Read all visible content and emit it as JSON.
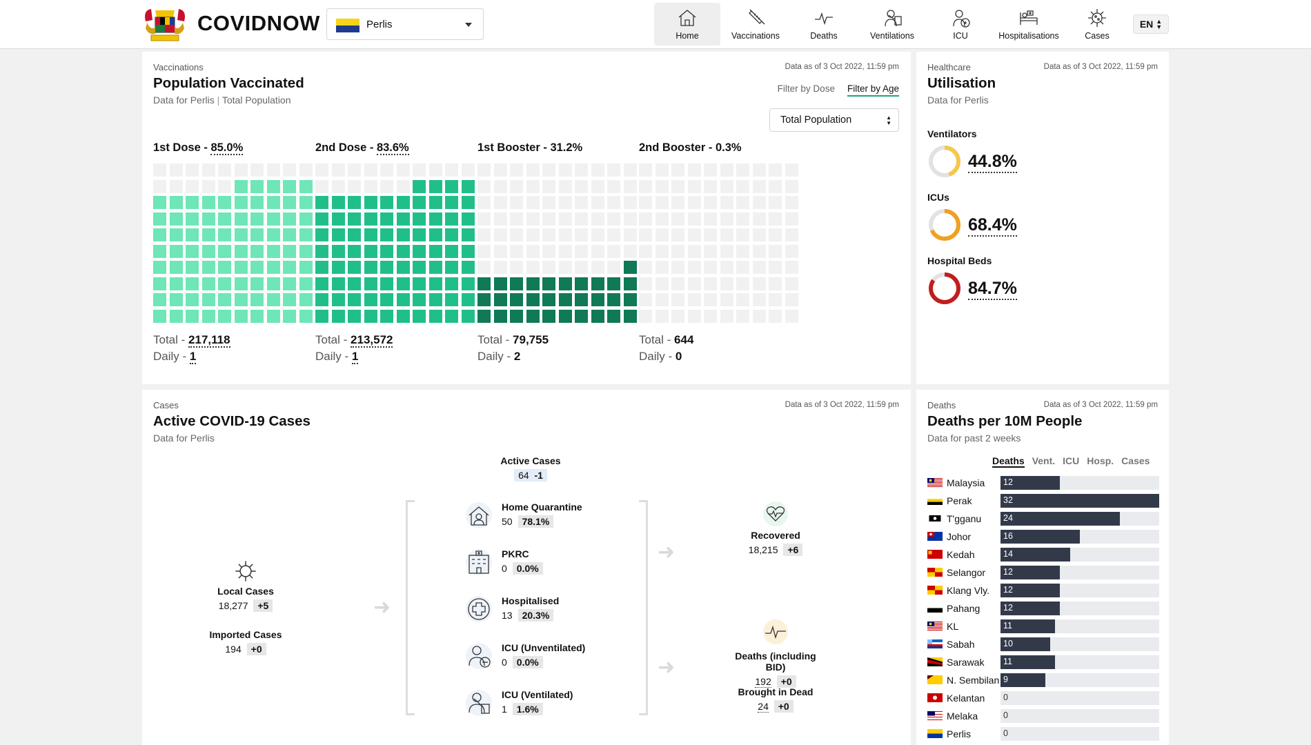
{
  "brand": "COVIDNOW",
  "state_select": {
    "value": "Perlis"
  },
  "nav": [
    {
      "label": "Home",
      "icon": "home-icon",
      "active": true
    },
    {
      "label": "Vaccinations",
      "icon": "syringe-icon"
    },
    {
      "label": "Deaths",
      "icon": "pulse-icon"
    },
    {
      "label": "Ventilations",
      "icon": "ventilator-icon"
    },
    {
      "label": "ICU",
      "icon": "icu-icon"
    },
    {
      "label": "Hospitalisations",
      "icon": "hospital-bed-icon"
    },
    {
      "label": "Cases",
      "icon": "virus-icon"
    }
  ],
  "lang": "EN",
  "vaccinations": {
    "eyebrow": "Vaccinations",
    "title": "Population Vaccinated",
    "subtitle_state": "Data for Perlis",
    "subtitle_sep": "|",
    "subtitle_pop": "Total Population",
    "asof": "Data as of 3 Oct 2022, 11:59 pm",
    "filter_dose": "Filter by Dose",
    "filter_age": "Filter by Age",
    "population_select": "Total Population",
    "total_prefix": "Total - ",
    "daily_prefix": "Daily - ",
    "doses": [
      {
        "label": "1st Dose - ",
        "pct": "85.0%",
        "percent": 85.0,
        "total": "217,118",
        "daily": "1",
        "color": "#6ee6b8"
      },
      {
        "label": "2nd Dose - ",
        "pct": "83.6%",
        "percent": 83.6,
        "total": "213,572",
        "daily": "1",
        "color": "#20bf8a"
      },
      {
        "label": "1st Booster - ",
        "pct": "31.2%",
        "percent": 31.2,
        "total": "79,755",
        "daily": "2",
        "color": "#0f7a55"
      },
      {
        "label": "2nd Booster - ",
        "pct": "0.3%",
        "percent": 0.3,
        "total": "644",
        "daily": "0",
        "color": "#0f7a55"
      }
    ]
  },
  "healthcare": {
    "eyebrow": "Healthcare",
    "title": "Utilisation",
    "subtitle": "Data for Perlis",
    "asof": "Data as of 3 Oct 2022, 11:59 pm",
    "items": [
      {
        "label": "Ventilators",
        "value": "44.8%",
        "percent": 44.8,
        "color": "#f5c84c"
      },
      {
        "label": "ICUs",
        "value": "68.4%",
        "percent": 68.4,
        "color": "#f0a020"
      },
      {
        "label": "Hospital Beds",
        "value": "84.7%",
        "percent": 84.7,
        "color": "#c21e1e"
      }
    ]
  },
  "cases": {
    "eyebrow": "Cases",
    "title": "Active COVID-19 Cases",
    "subtitle": "Data for Perlis",
    "asof": "Data as of 3 Oct 2022, 11:59 pm",
    "active": {
      "label": "Active Cases",
      "value": "64",
      "delta": "-1"
    },
    "local": {
      "label": "Local Cases",
      "value": "18,277",
      "delta": "+5"
    },
    "imported": {
      "label": "Imported Cases",
      "value": "194",
      "delta": "+0"
    },
    "categories": [
      {
        "label": "Home Quarantine",
        "value": "50",
        "pct": "78.1%",
        "icon": "home-quarantine-icon"
      },
      {
        "label": "PKRC",
        "value": "0",
        "pct": "0.0%",
        "icon": "pkrc-building-icon"
      },
      {
        "label": "Hospitalised",
        "value": "13",
        "pct": "20.3%",
        "icon": "hospital-cross-icon"
      },
      {
        "label": "ICU (Unventilated)",
        "value": "0",
        "pct": "0.0%",
        "icon": "icu-unventilated-icon"
      },
      {
        "label": "ICU (Ventilated)",
        "value": "1",
        "pct": "1.6%",
        "icon": "icu-ventilated-icon"
      }
    ],
    "recovered": {
      "label": "Recovered",
      "value": "18,215",
      "delta": "+6"
    },
    "deaths": {
      "label": "Deaths (including BID)",
      "value": "192",
      "delta": "+0"
    },
    "bid": {
      "label": "Brought in Dead",
      "value": "24",
      "delta": "+0"
    }
  },
  "deaths_card": {
    "eyebrow": "Deaths",
    "title": "Deaths per 10M People",
    "subtitle": "Data for past 2 weeks",
    "asof": "Data as of 3 Oct 2022, 11:59 pm",
    "tabs": [
      "Deaths",
      "Vent.",
      "ICU",
      "Hosp.",
      "Cases"
    ],
    "max": 32,
    "rows": [
      {
        "name": "Malaysia",
        "value": 12,
        "flag": "malaysia"
      },
      {
        "name": "Perak",
        "value": 32,
        "flag": "perak"
      },
      {
        "name": "T'gganu",
        "value": 24,
        "flag": "terengganu"
      },
      {
        "name": "Johor",
        "value": 16,
        "flag": "johor"
      },
      {
        "name": "Kedah",
        "value": 14,
        "flag": "kedah"
      },
      {
        "name": "Selangor",
        "value": 12,
        "flag": "selangor"
      },
      {
        "name": "Klang Vly.",
        "value": 12,
        "flag": "selangor"
      },
      {
        "name": "Pahang",
        "value": 12,
        "flag": "pahang"
      },
      {
        "name": "KL",
        "value": 11,
        "flag": "malaysia"
      },
      {
        "name": "Sabah",
        "value": 10,
        "flag": "sabah"
      },
      {
        "name": "Sarawak",
        "value": 11,
        "flag": "sarawak"
      },
      {
        "name": "N. Sembilan",
        "value": 9,
        "flag": "nsembilan"
      },
      {
        "name": "Kelantan",
        "value": 0,
        "flag": "kelantan"
      },
      {
        "name": "Melaka",
        "value": 0,
        "flag": "melaka"
      },
      {
        "name": "Perlis",
        "value": 0,
        "flag": "perlis"
      }
    ]
  }
}
